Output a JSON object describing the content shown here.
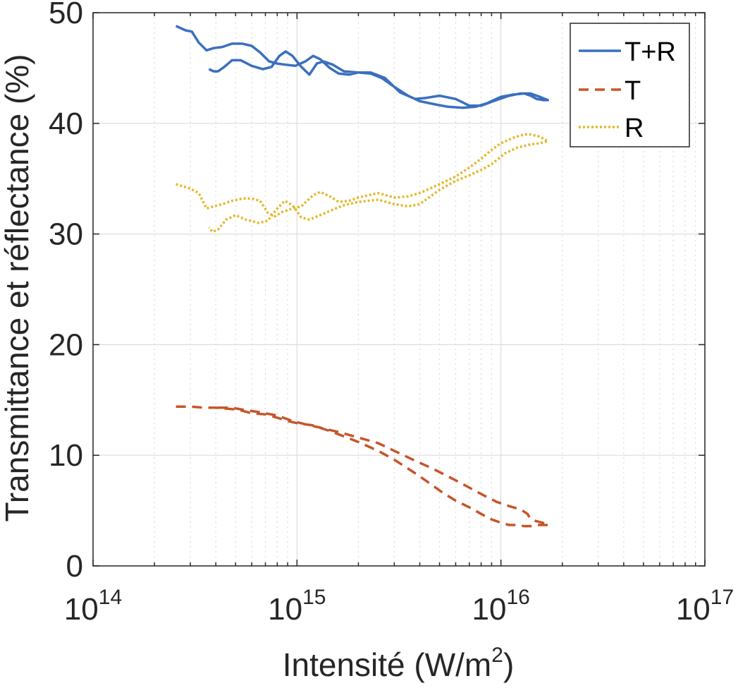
{
  "chart_data": {
    "type": "line",
    "xlabel": "Intensité (W/m",
    "xlabel_sup": "2",
    "xlabel_suffix": ")",
    "ylabel": "Transmittance et réflectance (%)",
    "xscale": "log",
    "xlim": [
      100000000000000.0,
      1e+17
    ],
    "ylim": [
      0,
      50
    ],
    "grid": true,
    "legend_position": "top-right",
    "x_ticks": [
      {
        "base": "10",
        "exp": "14",
        "value": 100000000000000.0
      },
      {
        "base": "10",
        "exp": "15",
        "value": 1000000000000000.0
      },
      {
        "base": "10",
        "exp": "16",
        "value": 1e+16
      },
      {
        "base": "10",
        "exp": "17",
        "value": 1e+17
      }
    ],
    "y_ticks": [
      {
        "label": "0",
        "value": 0
      },
      {
        "label": "10",
        "value": 10
      },
      {
        "label": "20",
        "value": 20
      },
      {
        "label": "30",
        "value": 30
      },
      {
        "label": "40",
        "value": 40
      },
      {
        "label": "50",
        "value": 50
      }
    ],
    "series": [
      {
        "name": "T+R",
        "color": "#3a6fbf",
        "style": "solid",
        "points": [
          [
            255000000000000.0,
            48.8
          ],
          [
            285000000000000.0,
            48.4
          ],
          [
            305000000000000.0,
            48.3
          ],
          [
            330000000000000.0,
            47.3
          ],
          [
            360000000000000.0,
            46.6
          ],
          [
            390000000000000.0,
            46.8
          ],
          [
            430000000000000.0,
            46.9
          ],
          [
            480000000000000.0,
            47.2
          ],
          [
            540000000000000.0,
            47.2
          ],
          [
            600000000000000.0,
            47.0
          ],
          [
            660000000000000.0,
            46.4
          ],
          [
            730000000000000.0,
            45.6
          ],
          [
            800000000000000.0,
            45.4
          ],
          [
            880000000000000.0,
            45.3
          ],
          [
            980000000000000.0,
            45.2
          ],
          [
            1100000000000000.0,
            45.6
          ],
          [
            1200000000000000.0,
            46.1
          ],
          [
            1300000000000000.0,
            45.8
          ],
          [
            1450000000000000.0,
            45.0
          ],
          [
            1600000000000000.0,
            44.5
          ],
          [
            1800000000000000.0,
            44.4
          ],
          [
            2000000000000000.0,
            44.6
          ],
          [
            2300000000000000.0,
            44.5
          ],
          [
            2600000000000000.0,
            44.1
          ],
          [
            3000000000000000.0,
            43.3
          ],
          [
            3500000000000000.0,
            42.5
          ],
          [
            4000000000000000.0,
            42.0
          ],
          [
            4800000000000000.0,
            41.7
          ],
          [
            5500000000000000.0,
            41.5
          ],
          [
            6500000000000000.0,
            41.4
          ],
          [
            7500000000000000.0,
            41.5
          ],
          [
            8500000000000000.0,
            41.8
          ],
          [
            1e+16,
            42.4
          ],
          [
            1.15e+16,
            42.6
          ],
          [
            1.3e+16,
            42.7
          ],
          [
            1.4e+16,
            42.5
          ],
          [
            1.5e+16,
            42.2
          ],
          [
            1.62e+16,
            42.1
          ],
          [
            1.7e+16,
            42.1
          ],
          [
            1.55e+16,
            42.4
          ],
          [
            1.4e+16,
            42.7
          ],
          [
            1.25e+16,
            42.7
          ],
          [
            1.1e+16,
            42.5
          ],
          [
            9500000000000000.0,
            42.1
          ],
          [
            8000000000000000.0,
            41.6
          ],
          [
            7000000000000000.0,
            41.6
          ],
          [
            6000000000000000.0,
            42.2
          ],
          [
            5000000000000000.0,
            42.5
          ],
          [
            4300000000000000.0,
            42.3
          ],
          [
            3800000000000000.0,
            42.2
          ],
          [
            3200000000000000.0,
            42.8
          ],
          [
            2700000000000000.0,
            44.1
          ],
          [
            2300000000000000.0,
            44.6
          ],
          [
            2000000000000000.0,
            44.6
          ],
          [
            1700000000000000.0,
            44.7
          ],
          [
            1500000000000000.0,
            45.3
          ],
          [
            1350000000000000.0,
            45.6
          ],
          [
            1250000000000000.0,
            45.4
          ],
          [
            1150000000000000.0,
            44.4
          ],
          [
            1050000000000000.0,
            45.1
          ],
          [
            950000000000000.0,
            46.1
          ],
          [
            880000000000000.0,
            46.5
          ],
          [
            820000000000000.0,
            46.1
          ],
          [
            750000000000000.0,
            45.1
          ],
          [
            680000000000000.0,
            44.9
          ],
          [
            600000000000000.0,
            45.2
          ],
          [
            530000000000000.0,
            45.7
          ],
          [
            480000000000000.0,
            45.7
          ],
          [
            440000000000000.0,
            45.1
          ],
          [
            410000000000000.0,
            44.7
          ],
          [
            390000000000000.0,
            44.7
          ],
          [
            370000000000000.0,
            44.9
          ]
        ]
      },
      {
        "name": "T",
        "color": "#c5552a",
        "style": "dashed",
        "points": [
          [
            255000000000000.0,
            14.4
          ],
          [
            300000000000000.0,
            14.4
          ],
          [
            350000000000000.0,
            14.3
          ],
          [
            400000000000000.0,
            14.3
          ],
          [
            460000000000000.0,
            14.2
          ],
          [
            520000000000000.0,
            14.1
          ],
          [
            600000000000000.0,
            13.8
          ],
          [
            700000000000000.0,
            13.7
          ],
          [
            800000000000000.0,
            13.4
          ],
          [
            900000000000000.0,
            13.1
          ],
          [
            1000000000000000.0,
            12.9
          ],
          [
            1200000000000000.0,
            12.7
          ],
          [
            1500000000000000.0,
            12.1
          ],
          [
            2000000000000000.0,
            11.2
          ],
          [
            2500000000000000.0,
            10.4
          ],
          [
            3000000000000000.0,
            9.6
          ],
          [
            3500000000000000.0,
            8.8
          ],
          [
            4000000000000000.0,
            8.1
          ],
          [
            4600000000000000.0,
            7.3
          ],
          [
            5200000000000000.0,
            6.6
          ],
          [
            6000000000000000.0,
            5.9
          ],
          [
            7000000000000000.0,
            5.3
          ],
          [
            8000000000000000.0,
            4.7
          ],
          [
            9000000000000000.0,
            4.2
          ],
          [
            1e+16,
            3.9
          ],
          [
            1.1e+16,
            3.7
          ],
          [
            1.2e+16,
            3.7
          ],
          [
            1.3e+16,
            3.6
          ],
          [
            1.4e+16,
            3.6
          ],
          [
            1.5e+16,
            3.7
          ],
          [
            1.6e+16,
            3.7
          ],
          [
            1.72e+16,
            3.7
          ],
          [
            1.6e+16,
            3.9
          ],
          [
            1.45e+16,
            4.1
          ],
          [
            1.38e+16,
            4.4
          ],
          [
            1.35e+16,
            4.7
          ],
          [
            1.25e+16,
            5.1
          ],
          [
            1.1e+16,
            5.4
          ],
          [
            9500000000000000.0,
            5.8
          ],
          [
            8000000000000000.0,
            6.5
          ],
          [
            6500000000000000.0,
            7.4
          ],
          [
            5500000000000000.0,
            8.1
          ],
          [
            4500000000000000.0,
            8.9
          ],
          [
            3800000000000000.0,
            9.5
          ],
          [
            3000000000000000.0,
            10.4
          ],
          [
            2500000000000000.0,
            11.1
          ],
          [
            2000000000000000.0,
            11.6
          ],
          [
            1600000000000000.0,
            12.1
          ],
          [
            1300000000000000.0,
            12.5
          ],
          [
            1100000000000000.0,
            12.8
          ],
          [
            950000000000000.0,
            13.1
          ],
          [
            800000000000000.0,
            13.6
          ],
          [
            650000000000000.0,
            13.9
          ],
          [
            550000000000000.0,
            14.1
          ],
          [
            480000000000000.0,
            14.3
          ],
          [
            420000000000000.0,
            14.3
          ],
          [
            370000000000000.0,
            14.3
          ]
        ]
      },
      {
        "name": "R",
        "color": "#e3b92e",
        "style": "dotted",
        "points": [
          [
            255000000000000.0,
            34.5
          ],
          [
            300000000000000.0,
            34.1
          ],
          [
            330000000000000.0,
            33.7
          ],
          [
            360000000000000.0,
            32.3
          ],
          [
            390000000000000.0,
            32.5
          ],
          [
            430000000000000.0,
            32.7
          ],
          [
            480000000000000.0,
            33.0
          ],
          [
            540000000000000.0,
            33.2
          ],
          [
            600000000000000.0,
            33.2
          ],
          [
            660000000000000.0,
            33.0
          ],
          [
            720000000000000.0,
            31.9
          ],
          [
            780000000000000.0,
            31.6
          ],
          [
            850000000000000.0,
            32.0
          ],
          [
            950000000000000.0,
            32.3
          ],
          [
            1050000000000000.0,
            32.5
          ],
          [
            1200000000000000.0,
            33.5
          ],
          [
            1300000000000000.0,
            33.8
          ],
          [
            1450000000000000.0,
            33.4
          ],
          [
            1600000000000000.0,
            32.9
          ],
          [
            1800000000000000.0,
            33.0
          ],
          [
            2000000000000000.0,
            33.3
          ],
          [
            2500000000000000.0,
            33.7
          ],
          [
            3000000000000000.0,
            33.3
          ],
          [
            3500000000000000.0,
            33.4
          ],
          [
            4000000000000000.0,
            33.7
          ],
          [
            5000000000000000.0,
            34.5
          ],
          [
            6000000000000000.0,
            35.2
          ],
          [
            7000000000000000.0,
            36.0
          ],
          [
            8000000000000000.0,
            36.8
          ],
          [
            9000000000000000.0,
            37.6
          ],
          [
            1e+16,
            38.2
          ],
          [
            1.15e+16,
            38.7
          ],
          [
            1.3e+16,
            39.0
          ],
          [
            1.4e+16,
            39.0
          ],
          [
            1.55e+16,
            38.8
          ],
          [
            1.7e+16,
            38.4
          ],
          [
            1.55e+16,
            38.2
          ],
          [
            1.4e+16,
            38.1
          ],
          [
            1.2e+16,
            37.8
          ],
          [
            1.05e+16,
            37.3
          ],
          [
            9000000000000000.0,
            36.3
          ],
          [
            8000000000000000.0,
            35.8
          ],
          [
            7000000000000000.0,
            35.3
          ],
          [
            6000000000000000.0,
            34.8
          ],
          [
            5000000000000000.0,
            34.0
          ],
          [
            4000000000000000.0,
            32.7
          ],
          [
            3500000000000000.0,
            32.5
          ],
          [
            3000000000000000.0,
            32.7
          ],
          [
            2500000000000000.0,
            33.1
          ],
          [
            2000000000000000.0,
            32.9
          ],
          [
            1700000000000000.0,
            32.6
          ],
          [
            1500000000000000.0,
            32.2
          ],
          [
            1300000000000000.0,
            31.7
          ],
          [
            1150000000000000.0,
            31.3
          ],
          [
            1050000000000000.0,
            31.5
          ],
          [
            950000000000000.0,
            32.6
          ],
          [
            870000000000000.0,
            33.0
          ],
          [
            800000000000000.0,
            32.3
          ],
          [
            720000000000000.0,
            31.2
          ],
          [
            650000000000000.0,
            31.0
          ],
          [
            560000000000000.0,
            31.3
          ],
          [
            500000000000000.0,
            31.7
          ],
          [
            450000000000000.0,
            31.3
          ],
          [
            410000000000000.0,
            30.4
          ],
          [
            385000000000000.0,
            30.2
          ],
          [
            370000000000000.0,
            30.6
          ]
        ]
      }
    ]
  }
}
